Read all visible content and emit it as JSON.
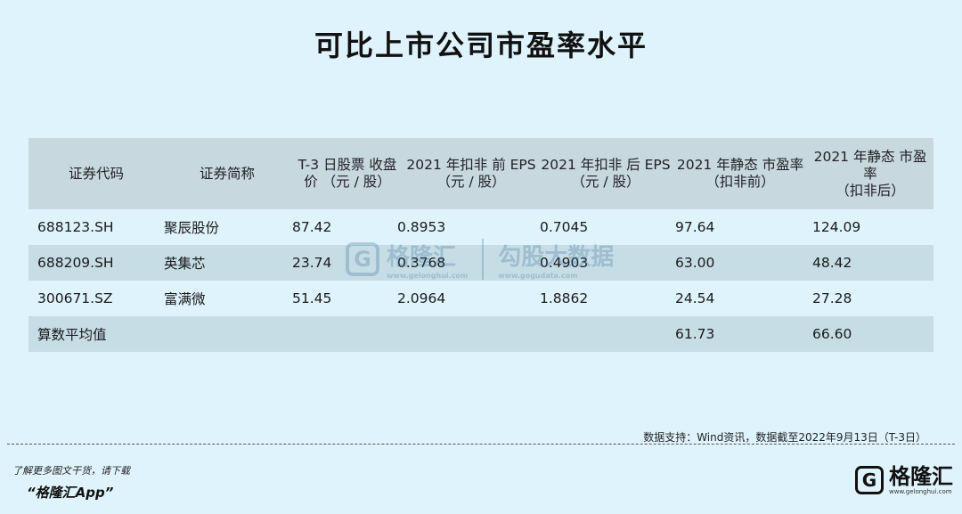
{
  "title": "可比上市公司市盈率水平",
  "table": {
    "headers": [
      [
        "证券代码"
      ],
      [
        "证券简称"
      ],
      [
        "T-3 日股票 收盘",
        "价 （元 / 股）"
      ],
      [
        "2021 年扣非 前 EPS",
        "（元 / 股）"
      ],
      [
        "2021 年扣非 后 EPS",
        "（元 / 股）"
      ],
      [
        "2021 年静态 市盈率",
        "（扣非前）"
      ],
      [
        "2021 年静态 市盈率",
        "（扣非后）"
      ]
    ],
    "rows": [
      [
        "688123.SH",
        "聚辰股份",
        "87.42",
        "0.8953",
        "0.7045",
        "97.64",
        "124.09"
      ],
      [
        "688209.SH",
        "英集芯",
        "23.74",
        "0.3768",
        "0.4903",
        "63.00",
        "48.42"
      ],
      [
        "300671.SZ",
        "富满微",
        "51.45",
        "2.0964",
        "1.8862",
        "24.54",
        "27.28"
      ],
      [
        "算数平均值",
        "",
        "",
        "",
        "",
        "61.73",
        "66.60"
      ]
    ]
  },
  "watermark": {
    "logo_letter": "G",
    "name": "格隆汇",
    "sub": "www.gelonghui.com",
    "name2": "勾股大数据",
    "sub2": "www.gogudata.com"
  },
  "source": "数据支持：Wind资讯，数据截至2022年9月13日（T-3日）",
  "promo": "了解更多图文干货，请下载",
  "app": "“格隆汇App”",
  "brand": {
    "logo_letter": "G",
    "name": "格隆汇",
    "sub": "www.gelonghui.com"
  },
  "colors": {
    "background": "#dff3fc",
    "header_bg": "#c8d8df",
    "stripe_bg": "#c6dde6"
  }
}
